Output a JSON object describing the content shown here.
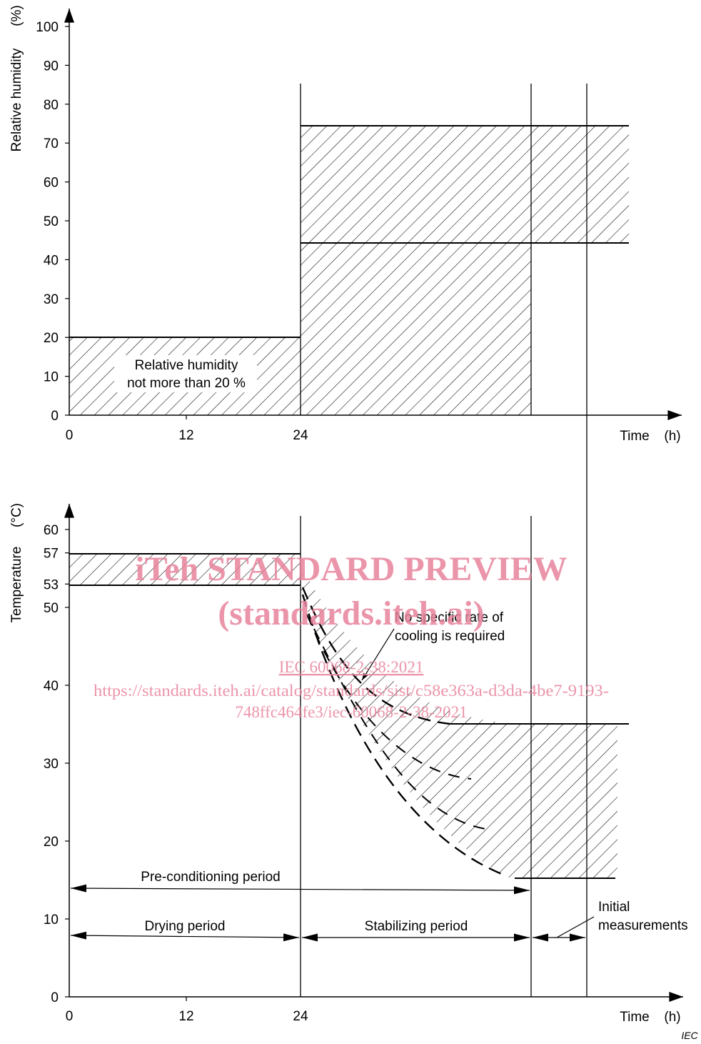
{
  "top_chart": {
    "y_axis_label": "Relative humidity",
    "y_axis_unit": "(%)",
    "y_ticks": [
      "0",
      "10",
      "20",
      "30",
      "40",
      "50",
      "60",
      "70",
      "80",
      "90",
      "100"
    ],
    "x_ticks": [
      "0",
      "12",
      "24"
    ],
    "x_axis_label": "Time",
    "x_axis_unit": "(h)",
    "annotation_line1": "Relative humidity",
    "annotation_line2": "not more than 20 %",
    "drying_limit_pct": 20,
    "stabilizing_band_pct": [
      45,
      75
    ]
  },
  "bottom_chart": {
    "y_axis_label": "Temperature",
    "y_axis_unit": "(°C)",
    "y_ticks": [
      "0",
      "10",
      "20",
      "30",
      "40",
      "50",
      "53",
      "57",
      "60"
    ],
    "x_ticks": [
      "0",
      "12",
      "24"
    ],
    "x_axis_label": "Time",
    "x_axis_unit": "(h)",
    "drying_band_c": [
      53,
      57
    ],
    "stabilizing_band_c": [
      15,
      35
    ],
    "cooling_note_line1": "No specific rate of",
    "cooling_note_line2": "cooling is required",
    "preconditioning_label": "Pre-conditioning period",
    "drying_label": "Drying period",
    "stabilizing_label": "Stabilizing period",
    "initial_line1": "Initial",
    "initial_line2": "measurements"
  },
  "watermark": {
    "line1": "iTeh STANDARD PREVIEW",
    "line2": "(standards.iteh.ai)",
    "line3": "IEC 60068-2-38:2021",
    "line4": "https://standards.iteh.ai/catalog/standards/sist/c58e363a-d3da-4be7-9193-",
    "line5": "748ffc464fe3/iec-60068-2-38-2021"
  },
  "credit": "IEC"
}
